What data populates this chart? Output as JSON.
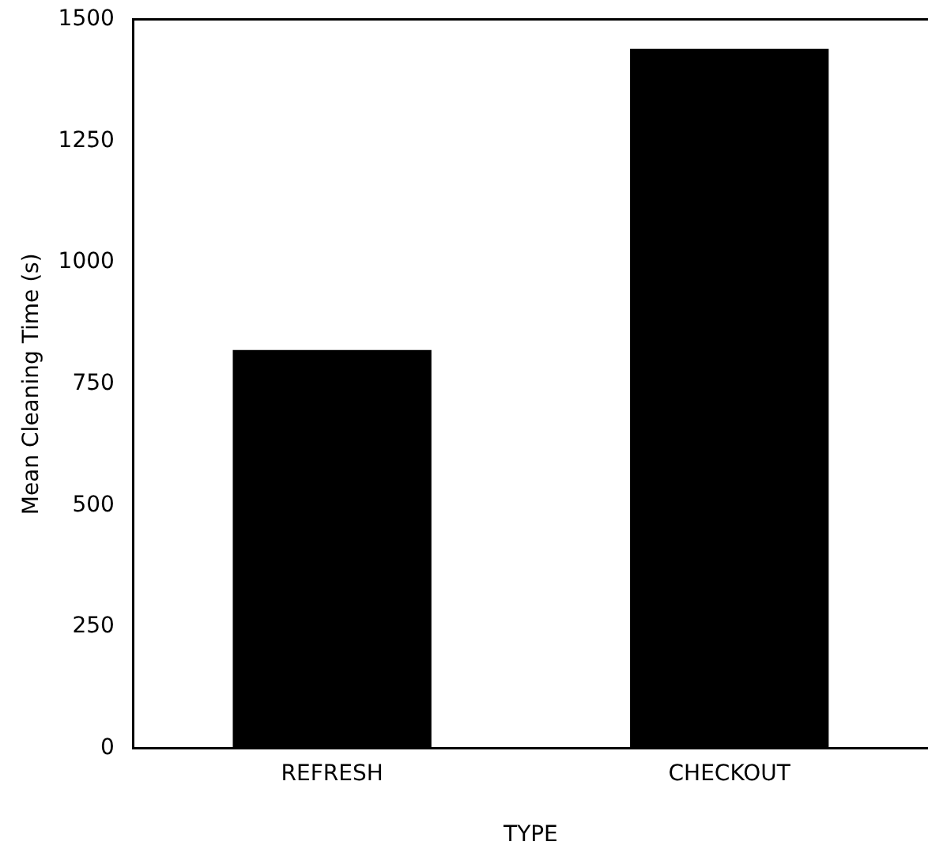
{
  "chart_data": {
    "type": "bar",
    "xlabel": "TYPE",
    "ylabel": "Mean Cleaning Time (s)",
    "categories": [
      "REFRESH",
      "CHECKOUT"
    ],
    "values": [
      820,
      1440
    ],
    "color": "#000000",
    "ylim": [
      0,
      1500
    ],
    "yticks": [
      0,
      250,
      500,
      750,
      1000,
      1250,
      1500
    ],
    "grid": false,
    "legend": false
  }
}
